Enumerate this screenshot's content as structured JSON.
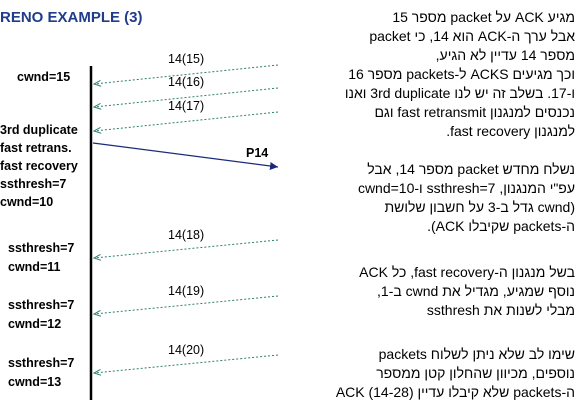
{
  "title": "RENO EXAMPLE (3)",
  "left_labels": {
    "cwnd_top": "cwnd=15",
    "state1": [
      "3rd duplicate",
      "fast retrans.",
      "fast recovery",
      "ssthresh=7",
      "cwnd=10"
    ],
    "state2": [
      "ssthresh=7",
      "cwnd=11"
    ],
    "state3": [
      "ssthresh=7",
      "cwnd=12"
    ],
    "state4": [
      "ssthresh=7",
      "cwnd=13"
    ]
  },
  "acks": [
    "14(15)",
    "14(16)",
    "14(17)",
    "14(18)",
    "14(19)",
    "14(20)"
  ],
  "packet": "P14",
  "paragraphs": [
    "מגיע ACK על packet מספר 15\nאבל ערך ה-ACK הוא 14, כי packet\nמספר 14 עדיין לא הגיע,\nוכך מגיעים ACKS ל-packets מספר 16\nו-17. בשלב זה יש לנו 3rd duplicate ואנו\nנכנסים למנגנון fast retransmit וגם\nלמנגנון fast recovery.",
    "נשלח מחדש packet מספר 14, אבל\nעפ\"י המנגנון, ssthresh=7 ו-cwnd=10\n(cwnd גדל ב-3 על חשבון שלושת\nה-packets שקיבלו ACK).",
    "בשל מנגנון ה-fast recovery, כל ACK\nנוסף שמגיע, מגדיל את cwnd ב-1,\nמבלי לשנות את ssthresh",
    "שימו לב שלא ניתן לשלוח packets\nנוספים, מכיוון שהחלון קטן ממספר\nה-packets שלא קיבלו עדיין ACK (14-28)"
  ],
  "colors": {
    "title": "#1f3d8a",
    "ack_line": "#2f7f6f",
    "packet_line": "#1a2a7a",
    "timeline": "#000000"
  }
}
